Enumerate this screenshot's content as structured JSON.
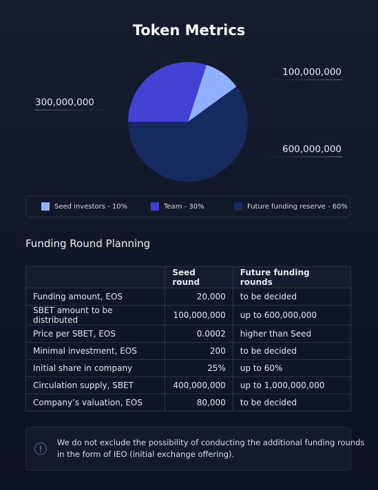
{
  "chart_data": {
    "type": "pie",
    "title": "Token Metrics",
    "categories": [
      "Seed investors - 10%",
      "Team - 30%",
      "Future funding reserve - 60%"
    ],
    "values": [
      100000000,
      300000000,
      600000000
    ],
    "value_labels": [
      "100,000,000",
      "300,000,000",
      "600,000,000"
    ],
    "colors": [
      "#8fb0ff",
      "#4341d4",
      "#152a5e"
    ]
  },
  "section_title": "Funding Round Planning",
  "table": {
    "columns": [
      "Seed round",
      "Future funding rounds"
    ],
    "rows": [
      [
        "Funding amount, EOS",
        "20,000",
        "to be decided"
      ],
      [
        "SBET amount to be distributed",
        "100,000,000",
        "up to 600,000,000"
      ],
      [
        "Price per SBET, EOS",
        "0.0002",
        "higher than Seed"
      ],
      [
        "Minimal investment, EOS",
        "200",
        "to be decided"
      ],
      [
        "Initial share in company",
        "25%",
        "up to 60%"
      ],
      [
        "Circulation supply, SBET",
        "400,000,000",
        "up to 1,000,000,000"
      ],
      [
        "Company’s valuation, EOS",
        "80,000",
        "to be decided"
      ]
    ]
  },
  "note": {
    "lines": [
      "We do not exclude the possibility of conducting the additional funding rounds",
      "in the form of IEO (initial exchange offering)."
    ]
  }
}
